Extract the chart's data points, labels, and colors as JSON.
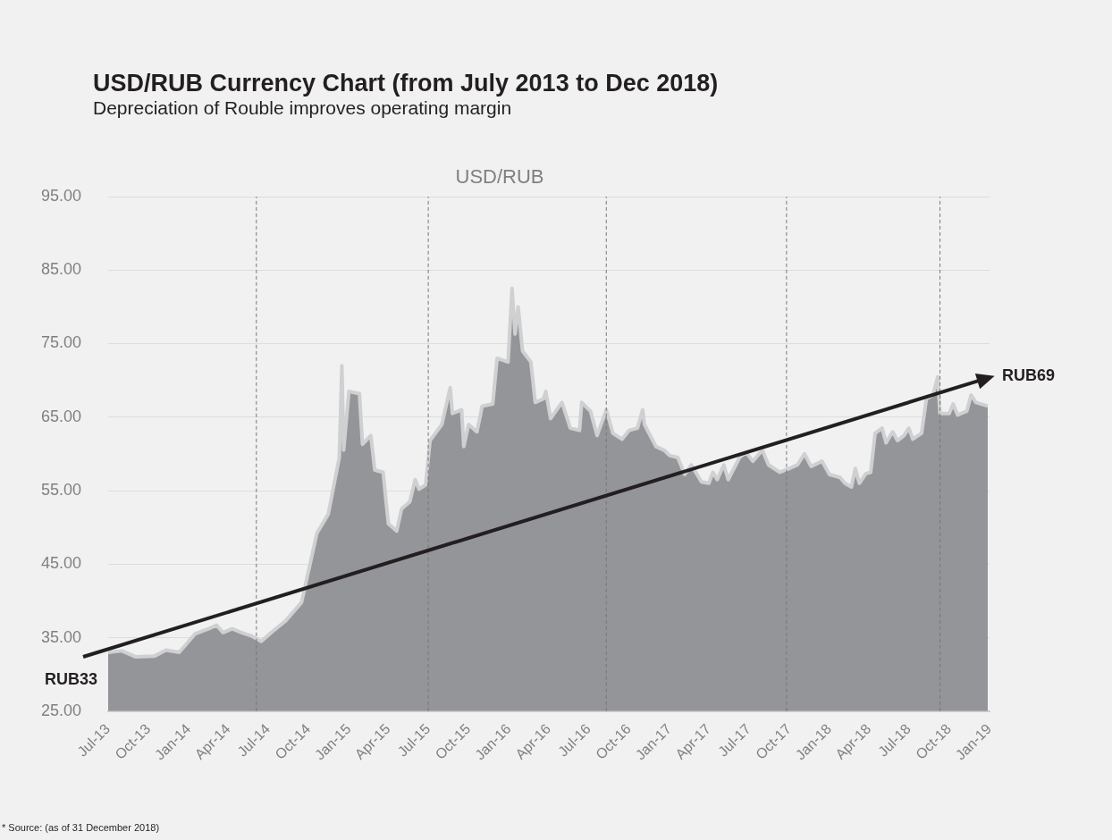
{
  "chart_data": {
    "type": "area",
    "title": "USD/RUB Currency Chart (from July 2013 to Dec 2018)",
    "subtitle": "Depreciation of Rouble improves operating margin",
    "annotations": [
      "RUB33",
      "RUB69",
      "* Source: (as of 31 December 2018)"
    ],
    "legend": "top",
    "grid": "y",
    "xlim": [
      "2013-07-01",
      "2019-01-01"
    ],
    "xticks": [
      {
        "value": "2013-07-01",
        "label": "Jul-13"
      },
      {
        "value": "2013-10-01",
        "label": "Oct-13"
      },
      {
        "value": "2014-01-01",
        "label": "Jan-14"
      },
      {
        "value": "2014-04-01",
        "label": "Apr-14"
      },
      {
        "value": "2014-07-01",
        "label": "Jul-14"
      },
      {
        "value": "2014-10-01",
        "label": "Oct-14"
      },
      {
        "value": "2015-01-01",
        "label": "Jan-15"
      },
      {
        "value": "2015-04-01",
        "label": "Apr-15"
      },
      {
        "value": "2015-07-01",
        "label": "Jul-15"
      },
      {
        "value": "2015-10-01",
        "label": "Oct-15"
      },
      {
        "value": "2016-01-01",
        "label": "Jan-16"
      },
      {
        "value": "2016-04-01",
        "label": "Apr-16"
      },
      {
        "value": "2016-07-01",
        "label": "Jul-16"
      },
      {
        "value": "2016-10-01",
        "label": "Oct-16"
      },
      {
        "value": "2017-01-01",
        "label": "Jan-17"
      },
      {
        "value": "2017-04-01",
        "label": "Apr-17"
      },
      {
        "value": "2017-07-01",
        "label": "Jul-17"
      },
      {
        "value": "2017-10-01",
        "label": "Oct-17"
      },
      {
        "value": "2018-01-01",
        "label": "Jan-18"
      },
      {
        "value": "2018-04-01",
        "label": "Apr-18"
      },
      {
        "value": "2018-07-01",
        "label": "Jul-18"
      },
      {
        "value": "2018-10-01",
        "label": "Oct-18"
      },
      {
        "value": "2019-01-01",
        "label": "Jan-19"
      }
    ],
    "ylim": [
      25,
      95
    ],
    "yticks": [
      {
        "value": 25,
        "label": "25.00"
      },
      {
        "value": 35,
        "label": "35.00"
      },
      {
        "value": 45,
        "label": "45.00"
      },
      {
        "value": 55,
        "label": "55.00"
      },
      {
        "value": 65,
        "label": "65.00"
      },
      {
        "value": 75,
        "label": "75.00"
      },
      {
        "value": 85,
        "label": "85.00"
      },
      {
        "value": 95,
        "label": "95.00"
      }
    ],
    "ref_lines": [
      {
        "axis": "x",
        "value": "2014-06-04",
        "color": "#777777",
        "line_style": "dashed"
      },
      {
        "axis": "x",
        "value": "2015-07-01",
        "color": "#777777",
        "line_style": "dashed"
      },
      {
        "axis": "x",
        "value": "2016-08-10",
        "color": "#777777",
        "line_style": "dashed"
      },
      {
        "axis": "x",
        "value": "2017-09-25",
        "color": "#777777",
        "line_style": "dashed"
      },
      {
        "axis": "x",
        "value": "2018-09-10",
        "color": "#777777",
        "line_style": "dashed"
      }
    ],
    "series": [
      {
        "name": "USD/RUB",
        "type": "area",
        "color": "#949599",
        "x": [
          "2013-07-01",
          "2013-08-01",
          "2013-09-01",
          "2013-10-15",
          "2013-11-10",
          "2013-12-10",
          "2014-01-15",
          "2014-02-15",
          "2014-03-05",
          "2014-03-20",
          "2014-04-10",
          "2014-05-01",
          "2014-05-25",
          "2014-06-15",
          "2014-07-10",
          "2014-08-10",
          "2014-09-15",
          "2014-10-20",
          "2014-11-15",
          "2014-12-10",
          "2014-12-16",
          "2014-12-20",
          "2015-01-01",
          "2015-01-25",
          "2015-02-01",
          "2015-02-20",
          "2015-03-01",
          "2015-03-20",
          "2015-04-01",
          "2015-04-20",
          "2015-05-01",
          "2015-05-20",
          "2015-06-01",
          "2015-06-10",
          "2015-06-25",
          "2015-07-05",
          "2015-08-01",
          "2015-08-20",
          "2015-08-25",
          "2015-09-15",
          "2015-09-20",
          "2015-10-01",
          "2015-10-20",
          "2015-11-01",
          "2015-11-25",
          "2015-12-05",
          "2015-12-30",
          "2016-01-08",
          "2016-01-15",
          "2016-01-22",
          "2016-02-01",
          "2016-02-20",
          "2016-03-01",
          "2016-03-20",
          "2016-03-25",
          "2016-04-05",
          "2016-04-25",
          "2016-05-01",
          "2016-05-20",
          "2016-06-10",
          "2016-06-15",
          "2016-07-05",
          "2016-07-20",
          "2016-08-10",
          "2016-08-25",
          "2016-09-15",
          "2016-10-01",
          "2016-10-20",
          "2016-11-01",
          "2016-11-05",
          "2016-12-01",
          "2016-12-20",
          "2017-01-01",
          "2017-01-20",
          "2017-02-05",
          "2017-02-20",
          "2017-03-15",
          "2017-04-01",
          "2017-04-10",
          "2017-04-20",
          "2017-05-05",
          "2017-05-15",
          "2017-06-10",
          "2017-06-25",
          "2017-07-10",
          "2017-08-01",
          "2017-08-15",
          "2017-09-10",
          "2017-10-01",
          "2017-10-20",
          "2017-11-05",
          "2017-11-20",
          "2017-12-15",
          "2018-01-01",
          "2018-01-25",
          "2018-02-05",
          "2018-02-20",
          "2018-03-01",
          "2018-03-10",
          "2018-03-25",
          "2018-04-05",
          "2018-04-15",
          "2018-05-01",
          "2018-05-10",
          "2018-05-25",
          "2018-06-05",
          "2018-06-20",
          "2018-07-01",
          "2018-07-10",
          "2018-07-30",
          "2018-08-10",
          "2018-08-25",
          "2018-09-05",
          "2018-09-10",
          "2018-10-01",
          "2018-10-10",
          "2018-10-20",
          "2018-11-10",
          "2018-11-20",
          "2018-12-01",
          "2018-12-28"
        ],
        "values": [
          33,
          33.2,
          32.4,
          32.5,
          33.3,
          33,
          35.5,
          36.2,
          36.7,
          35.7,
          36.2,
          35.7,
          35.2,
          34.5,
          35.8,
          37.3,
          39.8,
          49.2,
          51.8,
          59.5,
          72,
          60.5,
          68.5,
          68.2,
          61.3,
          62.5,
          57.8,
          57.5,
          50.5,
          49.5,
          52.5,
          53.5,
          56.5,
          55.2,
          55.8,
          61.8,
          64,
          69,
          65.5,
          66,
          61,
          64,
          63,
          66.5,
          66.8,
          73,
          72.5,
          82.5,
          76.3,
          80,
          74,
          72.5,
          67,
          67.5,
          68.5,
          64.8,
          66.5,
          67,
          63.5,
          63.2,
          67,
          65.8,
          62.5,
          66,
          62.8,
          62,
          63.2,
          63.5,
          66,
          64,
          61,
          60.5,
          59.8,
          59.5,
          57.2,
          58.5,
          56.2,
          56,
          57.5,
          56.5,
          58.5,
          56.5,
          59.5,
          60.2,
          59,
          60.5,
          58.5,
          57.5,
          58,
          58.5,
          60,
          58.3,
          59,
          57.2,
          56.8,
          56,
          55.5,
          58,
          56,
          57.3,
          57.5,
          62.8,
          63.5,
          61.5,
          63,
          61.8,
          62.5,
          63.5,
          62,
          62.8,
          67.5,
          68,
          70.5,
          65.5,
          65.5,
          66.8,
          65.3,
          65.8,
          68,
          67,
          66.5
        ]
      }
    ]
  }
}
